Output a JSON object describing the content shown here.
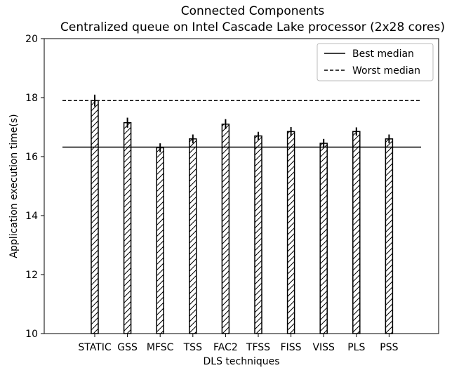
{
  "chart_data": {
    "type": "bar",
    "title": "Connected Components",
    "subtitle": "Centralized queue on Intel Cascade Lake processor (2x28 cores)",
    "xlabel": "DLS techniques",
    "ylabel": "Application execution time(s)",
    "categories": [
      "STATIC",
      "GSS",
      "MFSC",
      "TSS",
      "FAC2",
      "TFSS",
      "FISS",
      "VISS",
      "PLS",
      "PSS"
    ],
    "values": [
      17.9,
      17.15,
      16.3,
      16.6,
      17.1,
      16.7,
      16.85,
      16.45,
      16.85,
      16.6
    ],
    "errors": [
      0.2,
      0.17,
      0.15,
      0.15,
      0.17,
      0.14,
      0.15,
      0.15,
      0.14,
      0.15
    ],
    "ylim": [
      10,
      20
    ],
    "yticks": [
      10,
      12,
      14,
      16,
      18,
      20
    ],
    "reference_lines": [
      {
        "name": "Best median",
        "value": 16.32,
        "style": "solid"
      },
      {
        "name": "Worst median",
        "value": 17.9,
        "style": "dashed"
      }
    ],
    "bar_style": "white fill, black edge, diagonal hatch",
    "grid": false,
    "legend_position": "top-right"
  }
}
